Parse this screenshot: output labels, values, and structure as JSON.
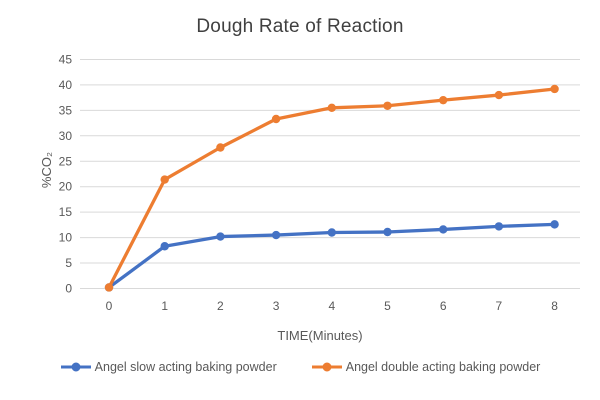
{
  "chart_data": {
    "type": "line",
    "title": "Dough Rate of Reaction",
    "xlabel": "TIME(Minutes)",
    "ylabel": "%CO₂",
    "categories": [
      "0",
      "1",
      "2",
      "3",
      "4",
      "5",
      "6",
      "7",
      "8"
    ],
    "y_ticks": [
      0,
      5,
      10,
      15,
      20,
      25,
      30,
      35,
      40,
      45
    ],
    "ylim": [
      0,
      45
    ],
    "grid": "horizontal gridlines on",
    "legend_position": "bottom",
    "marker": "circle",
    "series": [
      {
        "name": "Angel slow acting baking powder",
        "color": "#4472C4",
        "values": [
          0.2,
          8.3,
          10.2,
          10.5,
          11.0,
          11.1,
          11.6,
          12.2,
          12.6
        ]
      },
      {
        "name": "Angel double acting baking powder",
        "color": "#ED7D31",
        "values": [
          0.2,
          21.4,
          27.7,
          33.3,
          35.5,
          35.9,
          37.0,
          38.0,
          39.2
        ]
      }
    ]
  },
  "colors": {
    "background": "#ffffff",
    "gridline": "#D9D9D9",
    "axis_text": "#595959",
    "title_text": "#404040"
  }
}
